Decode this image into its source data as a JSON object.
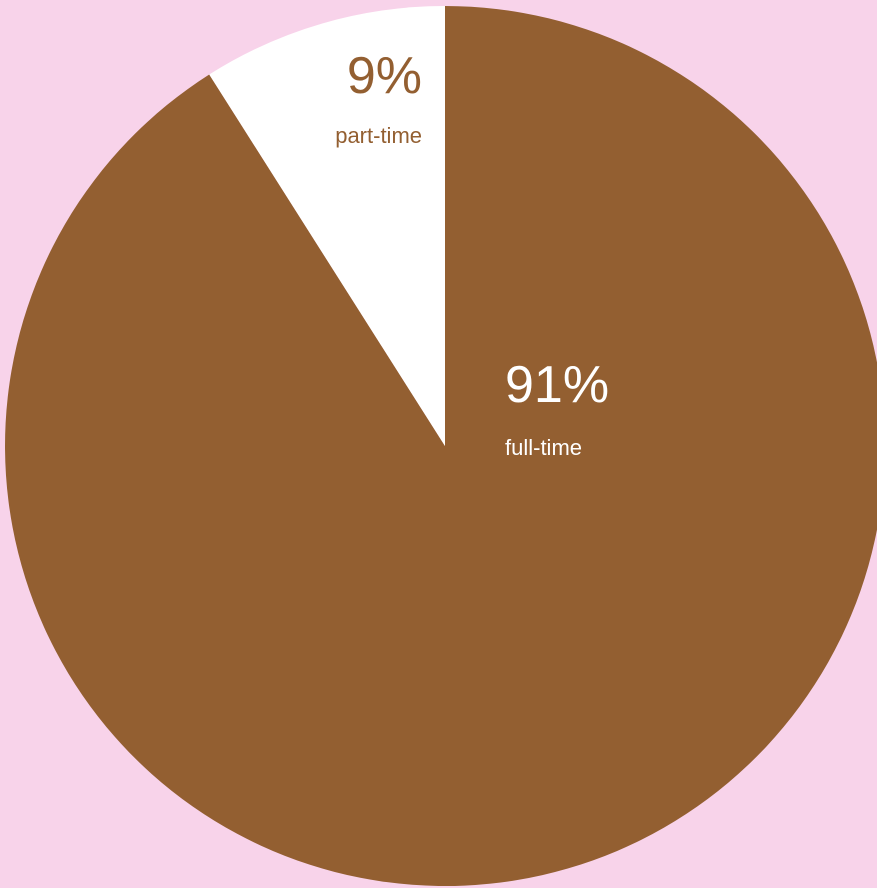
{
  "chart_data": {
    "type": "pie",
    "title": "",
    "slices": [
      {
        "label": "full-time",
        "value": 91,
        "display": "91%",
        "color": "#935f31",
        "label_color": "#ffffff"
      },
      {
        "label": "part-time",
        "value": 9,
        "display": "9%",
        "color": "#ffffff",
        "label_color": "#935f31"
      }
    ],
    "start": "12 o'clock",
    "direction": "clockwise",
    "background_color": "#f8d3ea"
  }
}
